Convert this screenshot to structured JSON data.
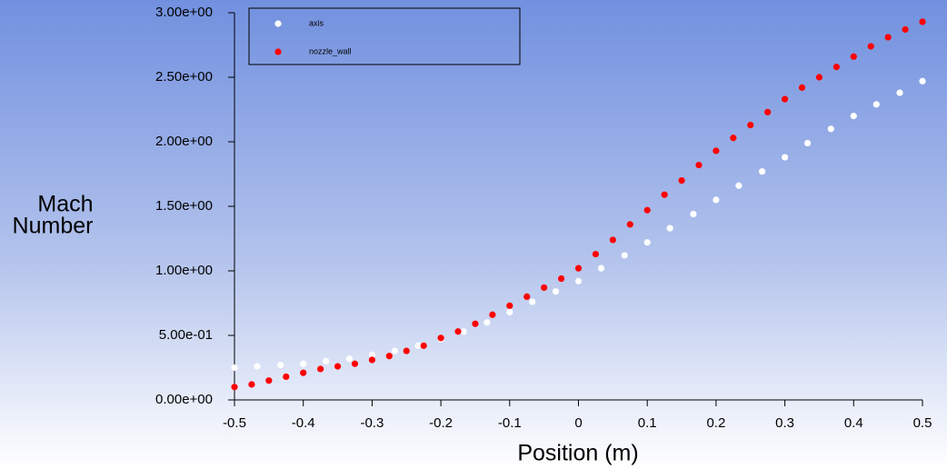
{
  "chart_data": {
    "type": "scatter",
    "x_label": "Position (m)",
    "y_label_lines": [
      "Mach",
      "Number"
    ],
    "xlim": [
      -0.5,
      0.5
    ],
    "xticks": [
      -0.5,
      -0.4,
      -0.3,
      -0.2,
      -0.1,
      0,
      0.1,
      0.2,
      0.3,
      0.4,
      0.5
    ],
    "ylim": [
      0,
      3
    ],
    "yticks": [
      {
        "value": 0,
        "label": "0.00e+00"
      },
      {
        "value": 0.5,
        "label": "5.00e-01"
      },
      {
        "value": 1,
        "label": "1.00e+00"
      },
      {
        "value": 1.5,
        "label": "1.50e+00"
      },
      {
        "value": 2,
        "label": "2.00e+00"
      },
      {
        "value": 2.5,
        "label": "2.50e+00"
      },
      {
        "value": 3,
        "label": "3.00e+00"
      }
    ],
    "grid": false,
    "legend": "upper left",
    "series": [
      {
        "name": "axis",
        "color": "#ffffff",
        "x": [
          -0.5,
          -0.467,
          -0.433,
          -0.4,
          -0.367,
          -0.333,
          -0.3,
          -0.267,
          -0.233,
          -0.2,
          -0.167,
          -0.133,
          -0.1,
          -0.067,
          -0.033,
          0,
          0.033,
          0.067,
          0.1,
          0.133,
          0.167,
          0.2,
          0.233,
          0.267,
          0.3,
          0.333,
          0.367,
          0.4,
          0.433,
          0.467,
          0.5
        ],
        "values": [
          0.25,
          0.26,
          0.27,
          0.28,
          0.3,
          0.32,
          0.35,
          0.38,
          0.42,
          0.47,
          0.53,
          0.6,
          0.68,
          0.76,
          0.84,
          0.92,
          1.02,
          1.12,
          1.22,
          1.33,
          1.44,
          1.55,
          1.66,
          1.77,
          1.88,
          1.99,
          2.1,
          2.2,
          2.29,
          2.38,
          2.47
        ]
      },
      {
        "name": "nozzle_wall",
        "color": "#ff0000",
        "x": [
          -0.5,
          -0.475,
          -0.45,
          -0.425,
          -0.4,
          -0.375,
          -0.35,
          -0.325,
          -0.3,
          -0.275,
          -0.25,
          -0.225,
          -0.2,
          -0.175,
          -0.15,
          -0.125,
          -0.1,
          -0.075,
          -0.05,
          -0.025,
          0,
          0.025,
          0.05,
          0.075,
          0.1,
          0.125,
          0.15,
          0.175,
          0.2,
          0.225,
          0.25,
          0.275,
          0.3,
          0.325,
          0.35,
          0.375,
          0.4,
          0.425,
          0.45,
          0.475,
          0.5
        ],
        "values": [
          0.1,
          0.12,
          0.15,
          0.18,
          0.21,
          0.24,
          0.26,
          0.28,
          0.31,
          0.34,
          0.38,
          0.42,
          0.48,
          0.53,
          0.59,
          0.66,
          0.73,
          0.8,
          0.87,
          0.94,
          1.02,
          1.13,
          1.24,
          1.36,
          1.47,
          1.59,
          1.7,
          1.82,
          1.93,
          2.03,
          2.13,
          2.23,
          2.33,
          2.42,
          2.5,
          2.58,
          2.66,
          2.74,
          2.81,
          2.87,
          2.93
        ]
      }
    ]
  }
}
